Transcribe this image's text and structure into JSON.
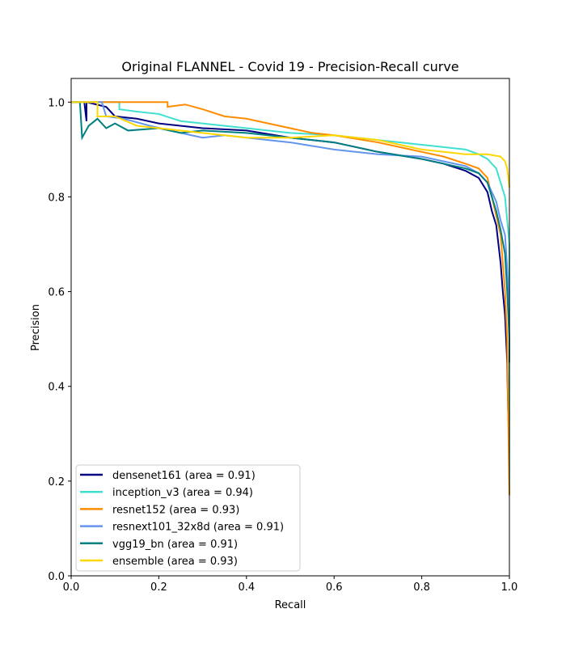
{
  "chart_data": {
    "type": "line",
    "title": "Original FLANNEL - Covid 19 - Precision-Recall curve",
    "xlabel": "Recall",
    "ylabel": "Precision",
    "xlim": [
      0.0,
      1.0
    ],
    "ylim": [
      0.0,
      1.05
    ],
    "xticks": [
      0.0,
      0.2,
      0.4,
      0.6,
      0.8,
      1.0
    ],
    "yticks": [
      0.0,
      0.2,
      0.4,
      0.6,
      0.8,
      1.0
    ],
    "xtick_labels": [
      "0.0",
      "0.2",
      "0.4",
      "0.6",
      "0.8",
      "1.0"
    ],
    "ytick_labels": [
      "0.0",
      "0.2",
      "0.4",
      "0.6",
      "0.8",
      "1.0"
    ],
    "grid": false,
    "legend_position": "lower left",
    "series": [
      {
        "name": "densenet161 (area = 0.91)",
        "color": "#000080",
        "points": [
          [
            0.0,
            1.0
          ],
          [
            0.03,
            1.0
          ],
          [
            0.035,
            0.96
          ],
          [
            0.035,
            1.0
          ],
          [
            0.08,
            0.99
          ],
          [
            0.1,
            0.97
          ],
          [
            0.15,
            0.965
          ],
          [
            0.2,
            0.955
          ],
          [
            0.3,
            0.945
          ],
          [
            0.4,
            0.94
          ],
          [
            0.5,
            0.925
          ],
          [
            0.6,
            0.915
          ],
          [
            0.7,
            0.895
          ],
          [
            0.8,
            0.88
          ],
          [
            0.85,
            0.87
          ],
          [
            0.9,
            0.855
          ],
          [
            0.93,
            0.84
          ],
          [
            0.95,
            0.81
          ],
          [
            0.96,
            0.77
          ],
          [
            0.97,
            0.74
          ],
          [
            0.975,
            0.7
          ],
          [
            0.98,
            0.66
          ],
          [
            0.985,
            0.6
          ],
          [
            0.99,
            0.55
          ],
          [
            0.995,
            0.45
          ],
          [
            0.997,
            0.35
          ],
          [
            1.0,
            0.27
          ]
        ]
      },
      {
        "name": "inception_v3 (area = 0.94)",
        "color": "#40e0d0",
        "points": [
          [
            0.0,
            1.0
          ],
          [
            0.11,
            1.0
          ],
          [
            0.11,
            0.985
          ],
          [
            0.15,
            0.98
          ],
          [
            0.2,
            0.975
          ],
          [
            0.25,
            0.96
          ],
          [
            0.3,
            0.955
          ],
          [
            0.4,
            0.945
          ],
          [
            0.5,
            0.935
          ],
          [
            0.6,
            0.93
          ],
          [
            0.7,
            0.92
          ],
          [
            0.8,
            0.91
          ],
          [
            0.85,
            0.905
          ],
          [
            0.9,
            0.9
          ],
          [
            0.93,
            0.89
          ],
          [
            0.95,
            0.88
          ],
          [
            0.96,
            0.87
          ],
          [
            0.97,
            0.86
          ],
          [
            0.98,
            0.83
          ],
          [
            0.99,
            0.8
          ],
          [
            0.995,
            0.75
          ],
          [
            1.0,
            0.7
          ],
          [
            1.0,
            0.17
          ]
        ]
      },
      {
        "name": "resnet152 (area = 0.93)",
        "color": "#ff8c00",
        "points": [
          [
            0.0,
            1.0
          ],
          [
            0.22,
            1.0
          ],
          [
            0.22,
            0.99
          ],
          [
            0.26,
            0.995
          ],
          [
            0.3,
            0.985
          ],
          [
            0.35,
            0.97
          ],
          [
            0.4,
            0.965
          ],
          [
            0.45,
            0.955
          ],
          [
            0.5,
            0.945
          ],
          [
            0.55,
            0.935
          ],
          [
            0.6,
            0.93
          ],
          [
            0.7,
            0.915
          ],
          [
            0.8,
            0.895
          ],
          [
            0.85,
            0.885
          ],
          [
            0.9,
            0.87
          ],
          [
            0.93,
            0.86
          ],
          [
            0.95,
            0.84
          ],
          [
            0.96,
            0.8
          ],
          [
            0.97,
            0.76
          ],
          [
            0.98,
            0.72
          ],
          [
            0.985,
            0.66
          ],
          [
            0.99,
            0.6
          ],
          [
            0.995,
            0.5
          ],
          [
            0.997,
            0.35
          ],
          [
            1.0,
            0.17
          ]
        ]
      },
      {
        "name": "resnext101_32x8d (area = 0.91)",
        "color": "#6495ed",
        "points": [
          [
            0.0,
            1.0
          ],
          [
            0.07,
            1.0
          ],
          [
            0.08,
            0.97
          ],
          [
            0.12,
            0.965
          ],
          [
            0.18,
            0.95
          ],
          [
            0.25,
            0.935
          ],
          [
            0.3,
            0.925
          ],
          [
            0.35,
            0.93
          ],
          [
            0.4,
            0.925
          ],
          [
            0.5,
            0.915
          ],
          [
            0.6,
            0.9
          ],
          [
            0.7,
            0.89
          ],
          [
            0.8,
            0.885
          ],
          [
            0.85,
            0.875
          ],
          [
            0.9,
            0.865
          ],
          [
            0.93,
            0.85
          ],
          [
            0.95,
            0.83
          ],
          [
            0.97,
            0.79
          ],
          [
            0.98,
            0.75
          ],
          [
            0.99,
            0.72
          ],
          [
            0.995,
            0.65
          ],
          [
            1.0,
            0.55
          ],
          [
            1.0,
            0.45
          ]
        ]
      },
      {
        "name": "vgg19_bn (area = 0.91)",
        "color": "#008080",
        "points": [
          [
            0.0,
            1.0
          ],
          [
            0.02,
            1.0
          ],
          [
            0.025,
            0.925
          ],
          [
            0.04,
            0.95
          ],
          [
            0.06,
            0.965
          ],
          [
            0.08,
            0.945
          ],
          [
            0.1,
            0.955
          ],
          [
            0.13,
            0.94
          ],
          [
            0.2,
            0.945
          ],
          [
            0.25,
            0.935
          ],
          [
            0.3,
            0.94
          ],
          [
            0.4,
            0.935
          ],
          [
            0.5,
            0.925
          ],
          [
            0.6,
            0.915
          ],
          [
            0.7,
            0.895
          ],
          [
            0.8,
            0.88
          ],
          [
            0.85,
            0.87
          ],
          [
            0.9,
            0.86
          ],
          [
            0.93,
            0.85
          ],
          [
            0.95,
            0.83
          ],
          [
            0.96,
            0.8
          ],
          [
            0.97,
            0.77
          ],
          [
            0.98,
            0.73
          ],
          [
            0.99,
            0.68
          ],
          [
            0.995,
            0.6
          ],
          [
            1.0,
            0.5
          ],
          [
            1.0,
            0.45
          ]
        ]
      },
      {
        "name": "ensemble (area = 0.93)",
        "color": "#ffd700",
        "points": [
          [
            0.0,
            1.0
          ],
          [
            0.06,
            1.0
          ],
          [
            0.06,
            0.97
          ],
          [
            0.1,
            0.97
          ],
          [
            0.15,
            0.95
          ],
          [
            0.2,
            0.945
          ],
          [
            0.3,
            0.935
          ],
          [
            0.4,
            0.925
          ],
          [
            0.5,
            0.925
          ],
          [
            0.6,
            0.93
          ],
          [
            0.7,
            0.92
          ],
          [
            0.8,
            0.9
          ],
          [
            0.85,
            0.895
          ],
          [
            0.9,
            0.89
          ],
          [
            0.95,
            0.89
          ],
          [
            0.98,
            0.885
          ],
          [
            0.99,
            0.875
          ],
          [
            0.995,
            0.86
          ],
          [
            1.0,
            0.82
          ]
        ]
      }
    ]
  }
}
